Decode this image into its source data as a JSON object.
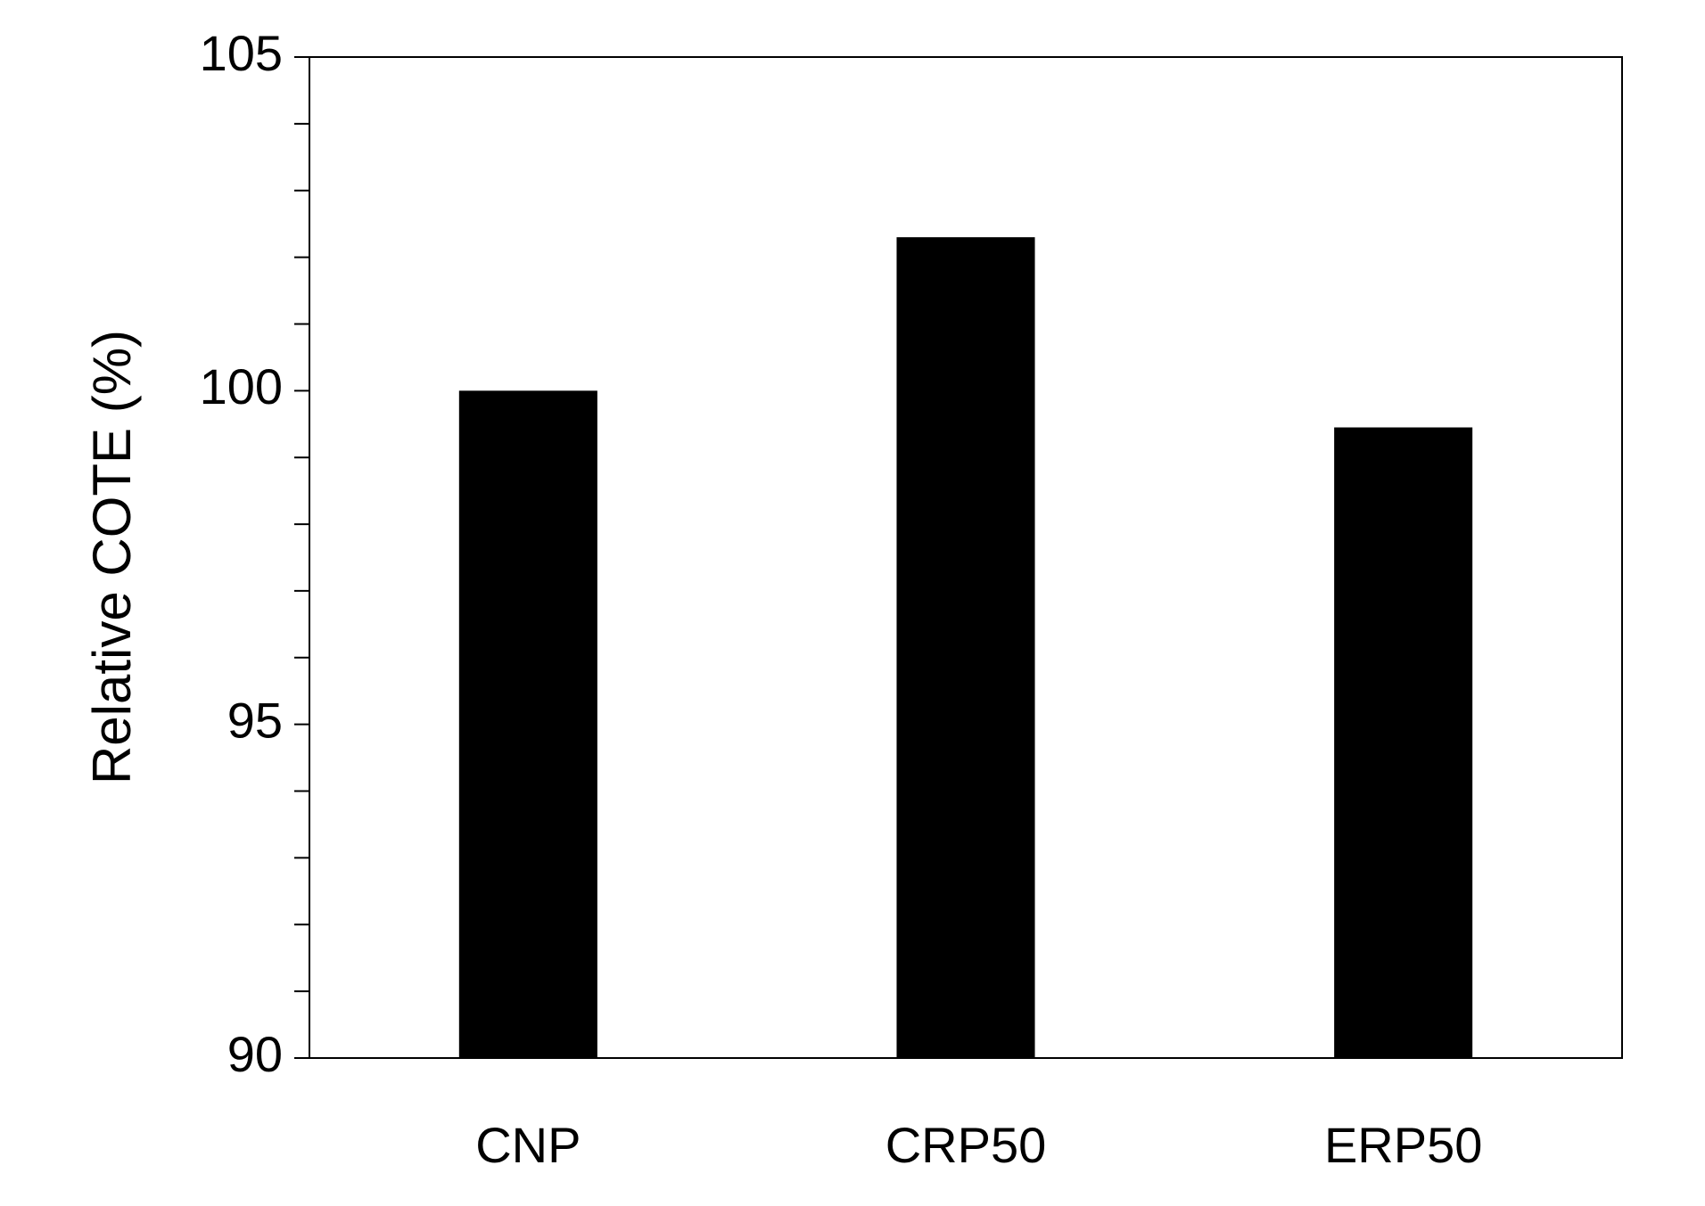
{
  "chart_data": {
    "type": "bar",
    "y_label": "Relative COTE (%)",
    "categories": [
      "CNP",
      "CRP50",
      "ERP50"
    ],
    "values": [
      100,
      102.3,
      99.45
    ],
    "color": "#000000",
    "ylim": [
      90,
      105
    ],
    "yticks": [
      90,
      95,
      100,
      105
    ],
    "yticks_minor": [
      91,
      92,
      93,
      94,
      96,
      97,
      98,
      99,
      101,
      102,
      103,
      104
    ],
    "grid": false
  }
}
